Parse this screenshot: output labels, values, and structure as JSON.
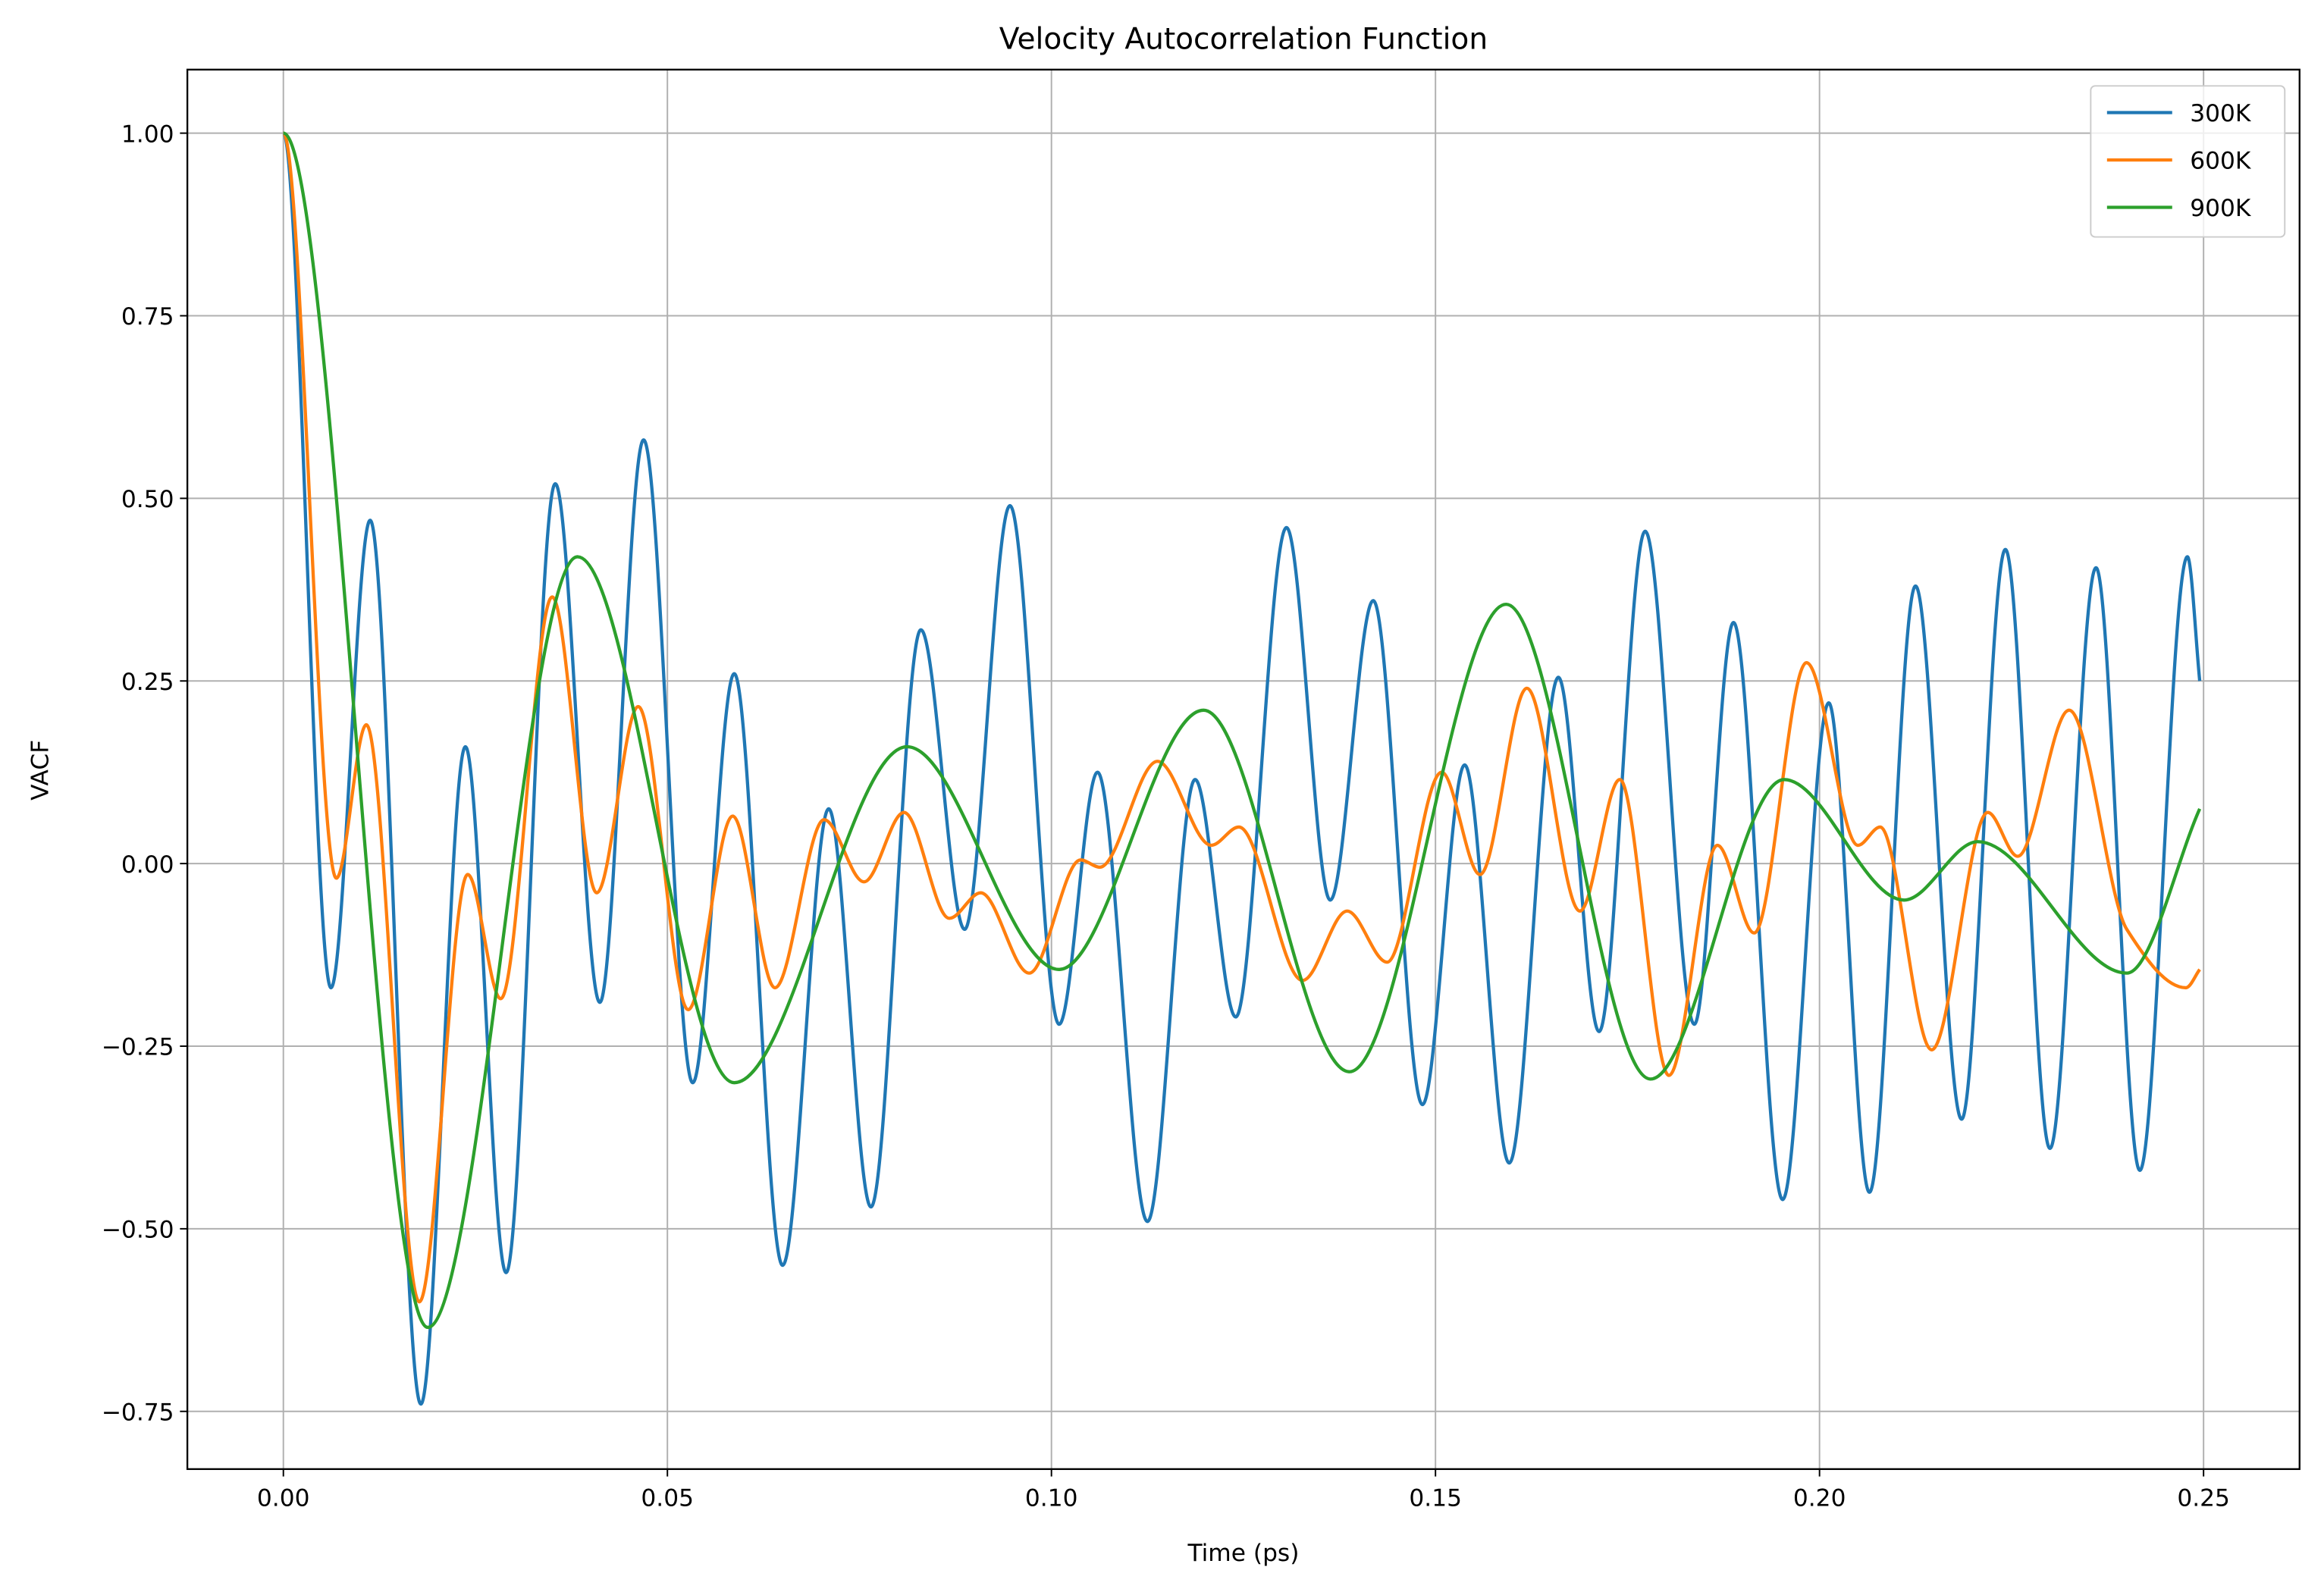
{
  "chart_data": {
    "type": "line",
    "title": "Velocity Autocorrelation Function",
    "x_label": "Time (ps)",
    "y_label": "VACF",
    "xlim": [
      -0.0125,
      0.2625
    ],
    "ylim": [
      -0.829,
      1.087
    ],
    "xticks": [
      {
        "value": 0,
        "label": "0.00"
      },
      {
        "value": 0.05,
        "label": "0.05"
      },
      {
        "value": 0.1,
        "label": "0.10"
      },
      {
        "value": 0.15,
        "label": "0.15"
      },
      {
        "value": 0.2,
        "label": "0.20"
      },
      {
        "value": 0.25,
        "label": "0.25"
      }
    ],
    "yticks": [
      {
        "value": -0.75,
        "label": "−0.75"
      },
      {
        "value": -0.5,
        "label": "−0.50"
      },
      {
        "value": -0.25,
        "label": "−0.25"
      },
      {
        "value": 0,
        "label": "0.00"
      },
      {
        "value": 0.25,
        "label": "0.25"
      },
      {
        "value": 0.5,
        "label": "0.50"
      },
      {
        "value": 0.75,
        "label": "0.75"
      },
      {
        "value": 1,
        "label": "1.00"
      }
    ],
    "grid": true,
    "legend": "upper right",
    "series": [
      {
        "name": "300K",
        "color": "#1f77b4",
        "x": [
          0,
          0.0062,
          0.0113,
          0.0179,
          0.0237,
          0.029,
          0.0354,
          0.0412,
          0.0469,
          0.0533,
          0.0587,
          0.065,
          0.071,
          0.0765,
          0.083,
          0.0887,
          0.0946,
          0.101,
          0.106,
          0.1125,
          0.1187,
          0.124,
          0.1306,
          0.1363,
          0.1419,
          0.1483,
          0.1538,
          0.1596,
          0.166,
          0.1713,
          0.1773,
          0.1837,
          0.1888,
          0.1952,
          0.2012,
          0.2065,
          0.2125,
          0.2185,
          0.2242,
          0.23,
          0.236,
          0.2417,
          0.2479,
          0.2495
        ],
        "values": [
          1.0,
          -0.17,
          0.47,
          -0.74,
          0.16,
          -0.56,
          0.52,
          -0.19,
          0.58,
          -0.3,
          0.26,
          -0.55,
          0.075,
          -0.47,
          0.32,
          -0.09,
          0.49,
          -0.22,
          0.125,
          -0.49,
          0.115,
          -0.21,
          0.46,
          -0.05,
          0.36,
          -0.33,
          0.135,
          -0.41,
          0.255,
          -0.23,
          0.455,
          -0.22,
          0.33,
          -0.46,
          0.22,
          -0.45,
          0.38,
          -0.35,
          0.43,
          -0.39,
          0.405,
          -0.42,
          0.42,
          0.25
        ]
      },
      {
        "name": "600K",
        "color": "#ff7f0e",
        "x": [
          0,
          0.0069,
          0.0108,
          0.0177,
          0.024,
          0.0283,
          0.035,
          0.0408,
          0.0462,
          0.0527,
          0.0585,
          0.064,
          0.0704,
          0.0756,
          0.0808,
          0.0867,
          0.0908,
          0.0971,
          0.1038,
          0.1063,
          0.1138,
          0.1208,
          0.1244,
          0.1327,
          0.1385,
          0.1437,
          0.1508,
          0.1558,
          0.1619,
          0.1688,
          0.174,
          0.1804,
          0.1867,
          0.1915,
          0.1983,
          0.205,
          0.2079,
          0.2146,
          0.2219,
          0.2258,
          0.2325,
          0.24,
          0.2477,
          0.2495
        ],
        "values": [
          1.0,
          -0.02,
          0.19,
          -0.6,
          -0.015,
          -0.185,
          0.365,
          -0.04,
          0.215,
          -0.2,
          0.065,
          -0.17,
          0.06,
          -0.025,
          0.07,
          -0.075,
          -0.04,
          -0.15,
          0.005,
          -0.005,
          0.14,
          0.025,
          0.05,
          -0.16,
          -0.065,
          -0.135,
          0.125,
          -0.015,
          0.24,
          -0.065,
          0.115,
          -0.29,
          0.025,
          -0.095,
          0.275,
          0.025,
          0.05,
          -0.255,
          0.07,
          0.01,
          0.21,
          -0.09,
          -0.17,
          -0.145
        ]
      },
      {
        "name": "900K",
        "color": "#2ca02c",
        "x": [
          0,
          0.0188,
          0.0383,
          0.0587,
          0.0812,
          0.101,
          0.1198,
          0.1388,
          0.1592,
          0.178,
          0.1954,
          0.211,
          0.2206,
          0.24,
          0.2495
        ],
        "values": [
          1.0,
          -0.635,
          0.42,
          -0.3,
          0.16,
          -0.145,
          0.21,
          -0.285,
          0.355,
          -0.295,
          0.115,
          -0.05,
          0.03,
          -0.15,
          0.075
        ]
      }
    ]
  }
}
